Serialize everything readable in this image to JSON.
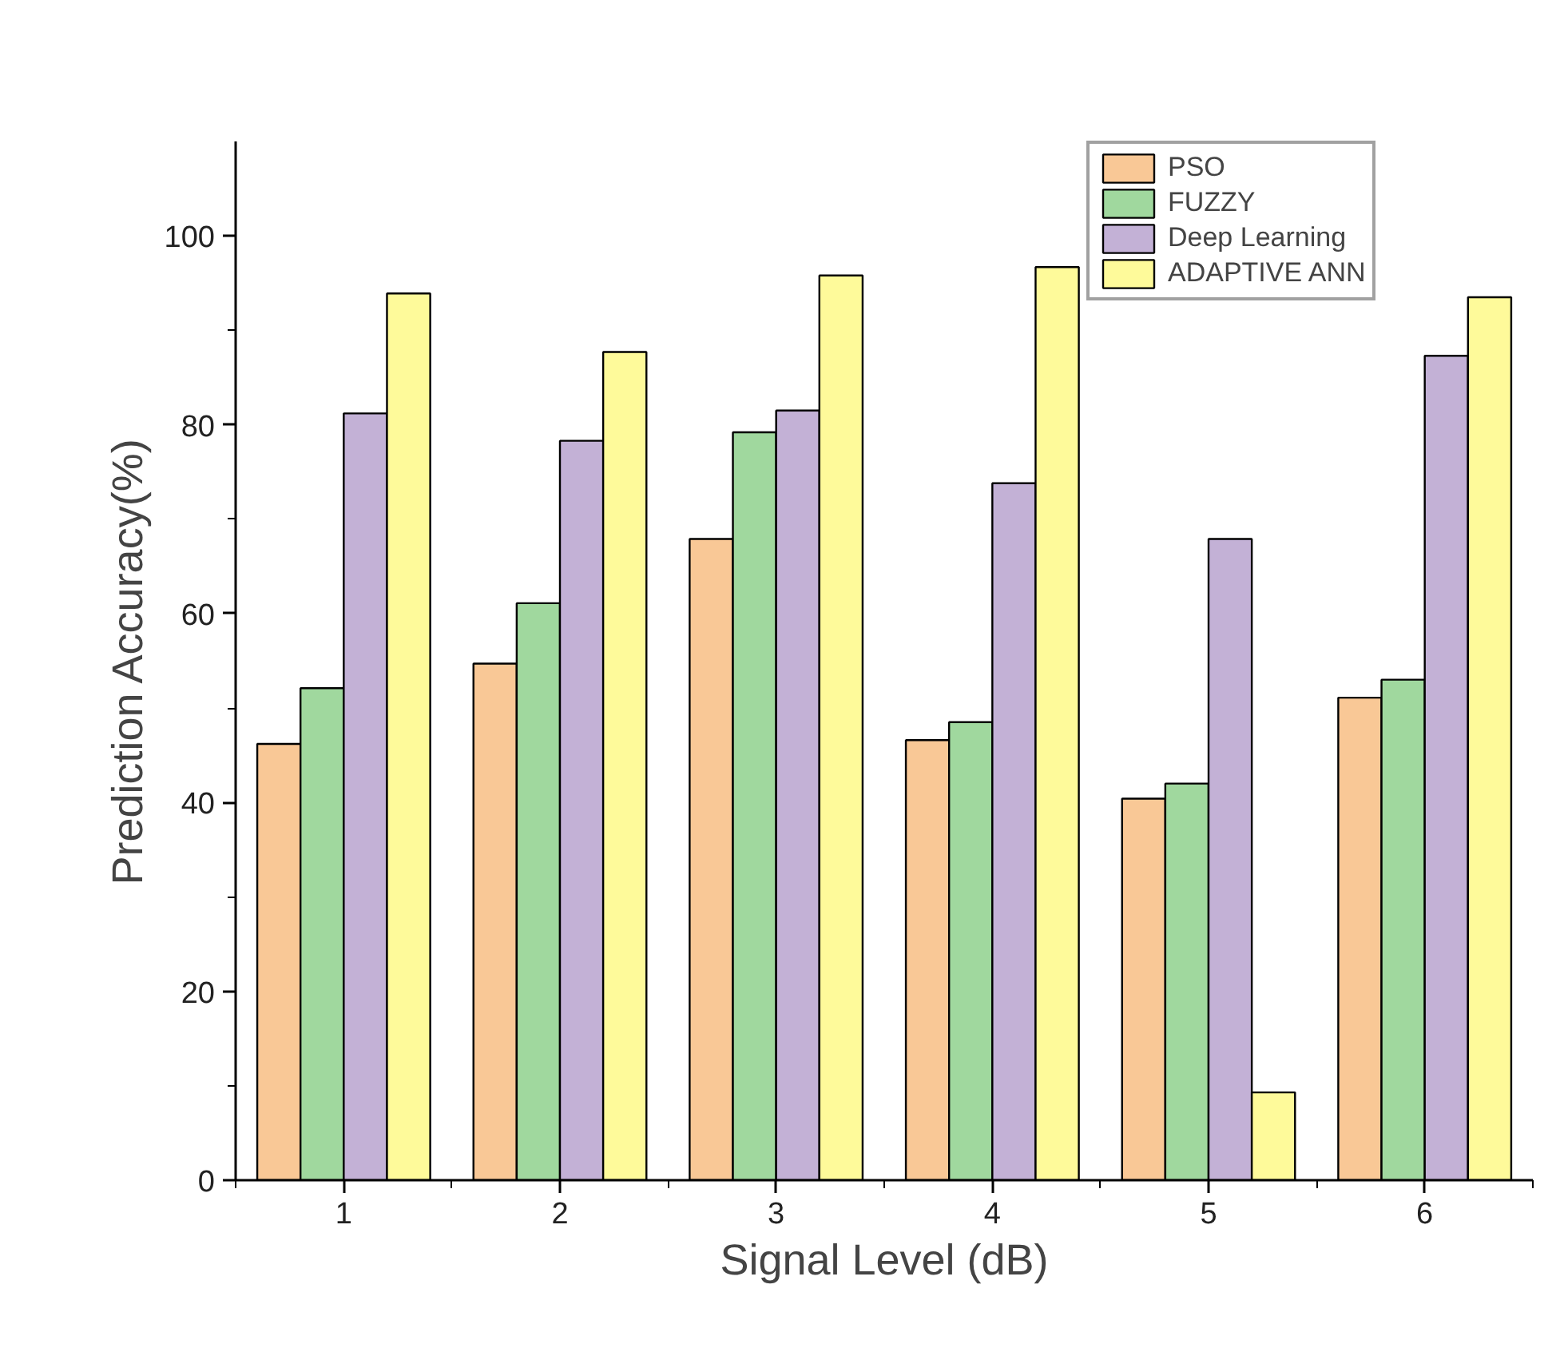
{
  "chart_data": {
    "type": "bar",
    "xlabel": "Signal Level (dB)",
    "ylabel": "Prediction Accuracy(%)",
    "x": [
      1,
      2,
      3,
      4,
      5,
      6
    ],
    "series": [
      {
        "name": "PSO",
        "color": "#f9c896",
        "values": [
          46.2,
          54.7,
          67.9,
          46.6,
          40.4,
          51.1
        ]
      },
      {
        "name": "FUZZY",
        "color": "#a0d89e",
        "values": [
          52.1,
          61.1,
          79.2,
          48.5,
          42.0,
          53.0
        ]
      },
      {
        "name": "Deep Learning",
        "color": "#c3b1d6",
        "values": [
          81.2,
          78.3,
          81.5,
          73.8,
          67.9,
          87.3
        ]
      },
      {
        "name": "ADAPTIVE ANN",
        "color": "#fefa9a",
        "values": [
          93.9,
          87.7,
          95.8,
          96.7,
          9.3,
          93.5
        ]
      }
    ],
    "xlim": [
      0.5,
      6.5
    ],
    "xticks": [
      1,
      2,
      3,
      4,
      5,
      6
    ],
    "ylim": [
      0,
      110
    ],
    "yticks": [
      0,
      20,
      40,
      60,
      80,
      100
    ],
    "grid": false,
    "legend": "top right"
  }
}
